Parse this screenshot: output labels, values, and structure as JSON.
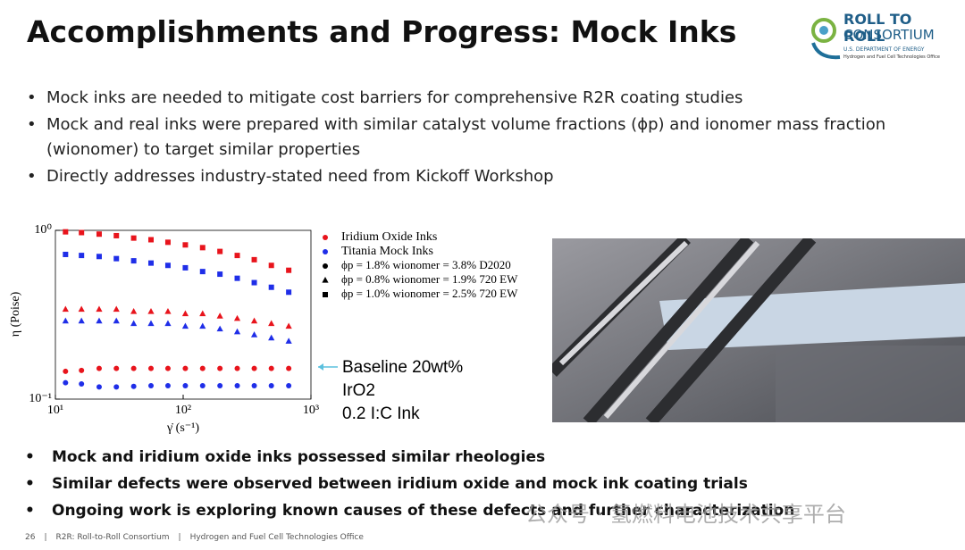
{
  "header": {
    "title": "Accomplishments and Progress: Mock Inks"
  },
  "logo": {
    "name": "ROLL TO ROLL",
    "subname": "CONSORTIUM",
    "agency": "U.S. DEPARTMENT OF ENERGY",
    "office": "Hydrogen and Fuel Cell Technologies Office"
  },
  "bullets": [
    "Mock inks are needed to mitigate cost barriers for comprehensive R2R coating studies",
    "Mock and real inks were prepared with similar catalyst volume fractions (ϕp) and ionomer mass fraction (wionomer) to target similar properties",
    "Directly addresses industry-stated need from Kickoff Workshop"
  ],
  "chart_data": {
    "type": "scatter",
    "xlabel": "γ̇ (s⁻¹)",
    "ylabel": "η (Poise)",
    "log_x": true,
    "log_y": true,
    "xlim": [
      10,
      1000
    ],
    "ylim": [
      0.1,
      1
    ],
    "xticks": [
      {
        "value": 10,
        "label": "10¹"
      },
      {
        "value": 100,
        "label": "10²"
      },
      {
        "value": 1000,
        "label": "10³"
      }
    ],
    "yticks": [
      {
        "value": 0.1,
        "label": "10⁻¹"
      },
      {
        "value": 1,
        "label": "10⁰"
      }
    ],
    "x": [
      12,
      16,
      22,
      30,
      41,
      56,
      76,
      104,
      142,
      194,
      265,
      360,
      490,
      670
    ],
    "formulations": [
      {
        "label": "ϕp = 1.8% wionomer = 3.8% D2020",
        "marker": "circle"
      },
      {
        "label": "ϕp = 0.8% wionomer = 1.9% 720 EW",
        "marker": "triangle"
      },
      {
        "label": "ϕp = 1.0% wionomer = 2.5% 720 EW",
        "marker": "square"
      }
    ],
    "inks": [
      {
        "name": "Iridium Oxide Inks",
        "color": "#e8141c",
        "series": [
          {
            "values": [
              0.146,
              0.148,
              0.152,
              0.152,
              0.152,
              0.152,
              0.152,
              0.152,
              0.152,
              0.152,
              0.152,
              0.152,
              0.152,
              0.152
            ]
          },
          {
            "values": [
              0.34,
              0.34,
              0.34,
              0.34,
              0.33,
              0.33,
              0.33,
              0.32,
              0.32,
              0.31,
              0.3,
              0.29,
              0.28,
              0.27
            ]
          },
          {
            "values": [
              0.98,
              0.97,
              0.95,
              0.93,
              0.9,
              0.88,
              0.85,
              0.82,
              0.79,
              0.75,
              0.71,
              0.67,
              0.62,
              0.58
            ]
          }
        ]
      },
      {
        "name": "Titania Mock Inks",
        "color": "#1f2ee8",
        "series": [
          {
            "values": [
              0.125,
              0.123,
              0.118,
              0.118,
              0.119,
              0.12,
              0.12,
              0.12,
              0.12,
              0.12,
              0.12,
              0.12,
              0.12,
              0.12
            ]
          },
          {
            "values": [
              0.29,
              0.29,
              0.29,
              0.29,
              0.28,
              0.28,
              0.28,
              0.27,
              0.27,
              0.26,
              0.25,
              0.24,
              0.23,
              0.22
            ]
          },
          {
            "values": [
              0.72,
              0.71,
              0.7,
              0.68,
              0.66,
              0.64,
              0.62,
              0.6,
              0.57,
              0.55,
              0.52,
              0.49,
              0.46,
              0.43
            ]
          }
        ]
      }
    ],
    "annotation": [
      "Baseline 20wt%",
      "IrO2",
      "0.2 I:C Ink"
    ]
  },
  "results": [
    "Mock and iridium oxide inks possessed similar rheologies",
    "Similar defects were observed between iridium oxide and mock ink coating trials",
    "Ongoing work is exploring known causes of these defects and further characterization"
  ],
  "footer": {
    "page": "26",
    "left": "R2R: Roll-to-Roll Consortium",
    "right": "Hydrogen and Fuel Cell Technologies Office"
  },
  "watermark": "公众号 · 氢燃料电池技术共享平台"
}
